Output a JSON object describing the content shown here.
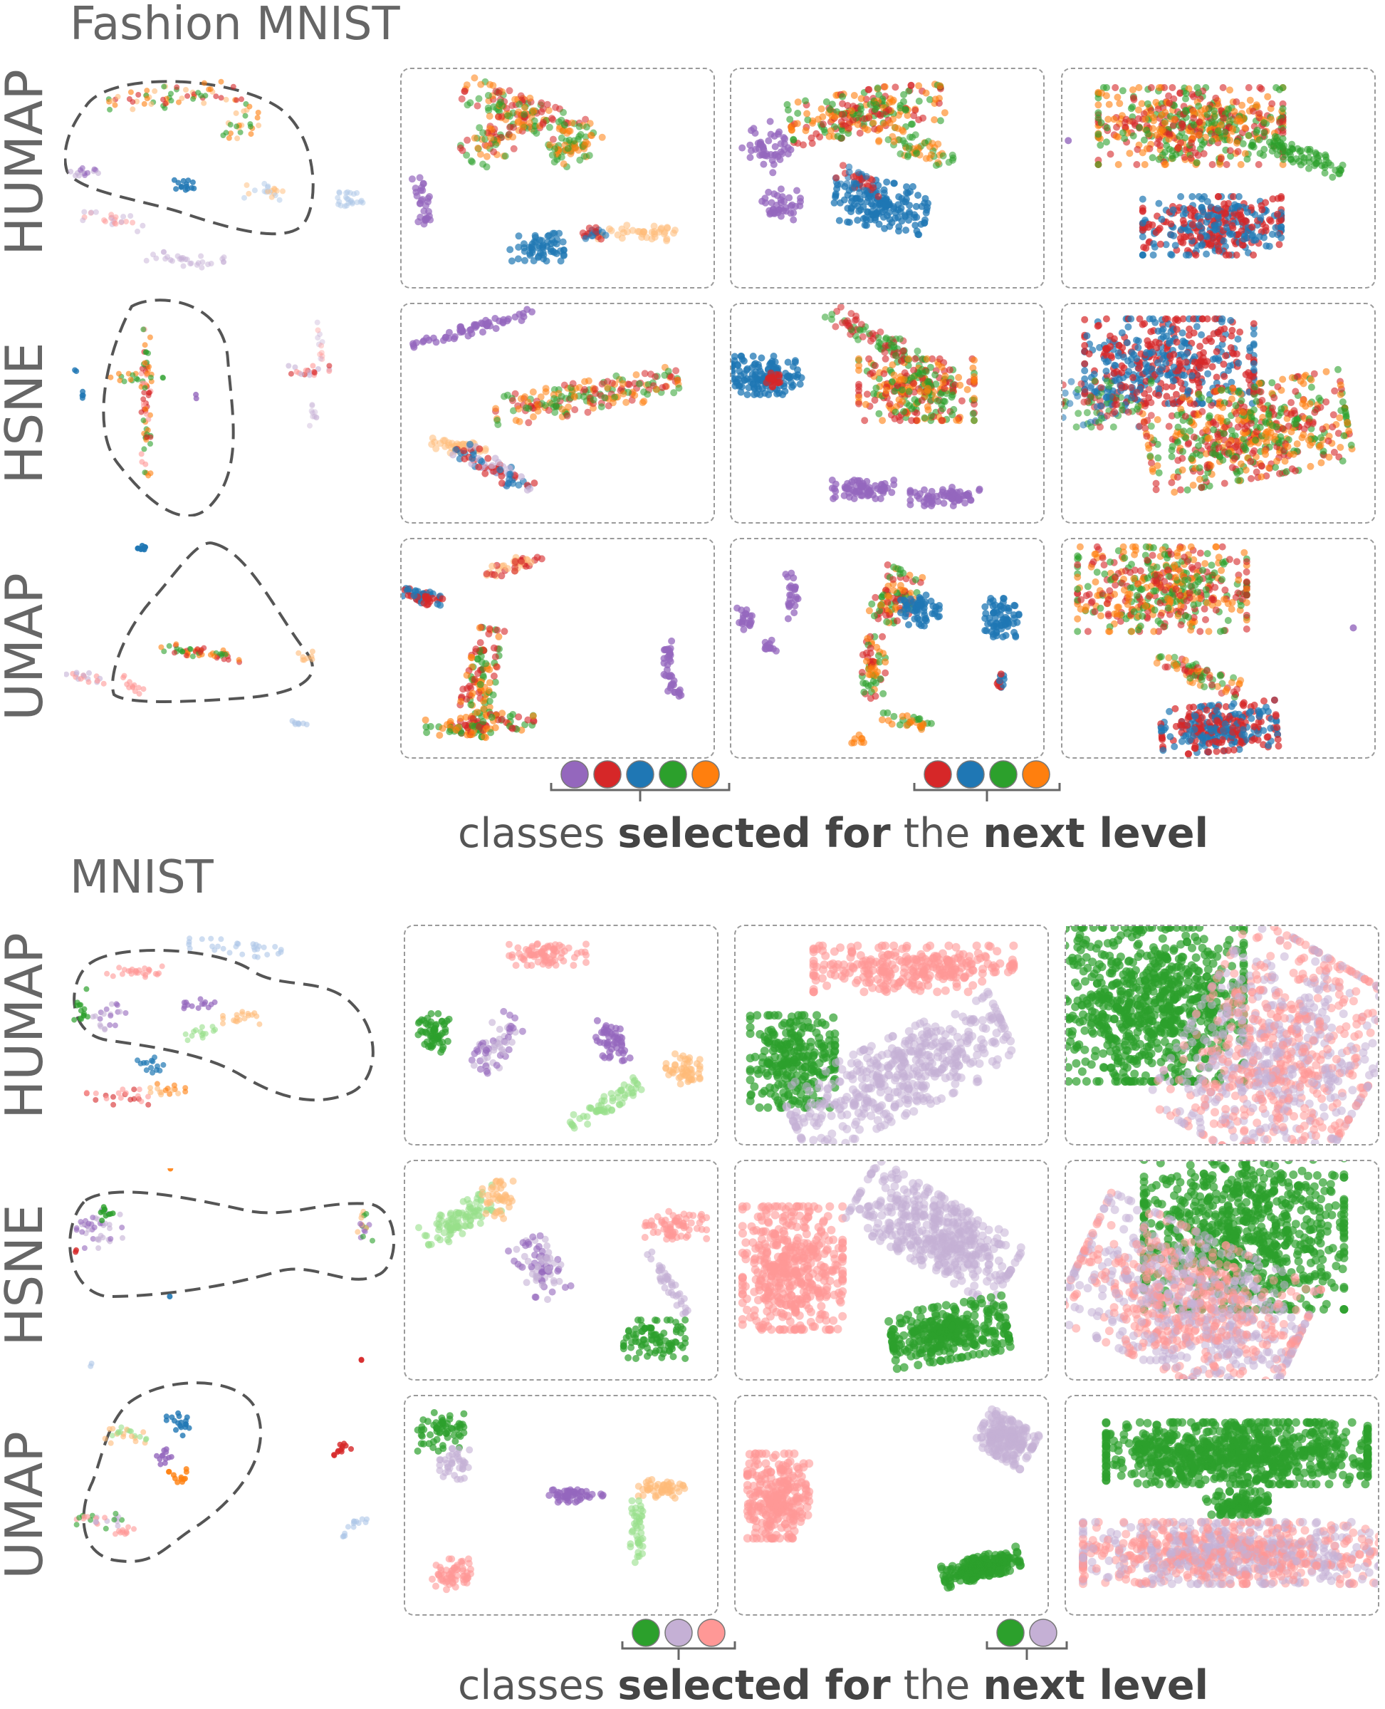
{
  "sections": [
    {
      "title": "Fashion MNIST",
      "rows": [
        {
          "method": "HUMAP"
        },
        {
          "method": "HSNE"
        },
        {
          "method": "UMAP"
        }
      ],
      "selection_1": [
        "purple",
        "red",
        "blue",
        "green",
        "orange"
      ],
      "selection_2": [
        "red",
        "blue",
        "green",
        "orange"
      ],
      "caption": {
        "part1": "classes",
        "part2": "selected for",
        "part3": "the",
        "part4": "next level"
      }
    },
    {
      "title": "MNIST",
      "rows": [
        {
          "method": "HUMAP"
        },
        {
          "method": "HSNE"
        },
        {
          "method": "UMAP"
        }
      ],
      "selection_1": [
        "green",
        "lavender",
        "pink"
      ],
      "selection_2": [
        "green",
        "lavender"
      ],
      "caption": {
        "part1": "classes",
        "part2": "selected for",
        "part3": "the",
        "part4": "next level"
      }
    }
  ],
  "colors": {
    "purple": "#9467bd",
    "red": "#d62728",
    "blue": "#1f77b4",
    "green": "#2ca02c",
    "orange": "#ff7f0e",
    "lavender": "#c5b0d5",
    "pink": "#ff9896",
    "light_orange": "#ffbb78",
    "light_green": "#98df8a",
    "light_blue": "#aec7e8"
  }
}
